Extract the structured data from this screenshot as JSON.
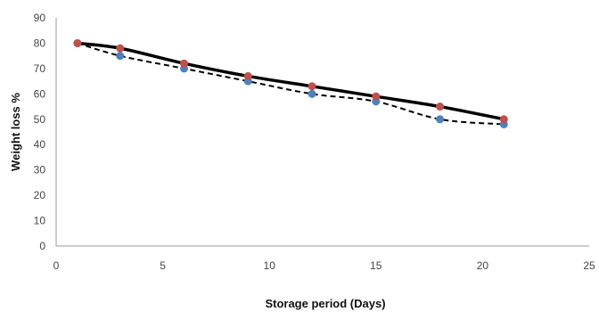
{
  "chart_data": {
    "type": "line",
    "title": "",
    "xlabel": "Storage period (Days)",
    "ylabel": "Weight loss %",
    "xlim": [
      0,
      25
    ],
    "ylim": [
      0,
      90
    ],
    "x_ticks": [
      "0",
      "5",
      "10",
      "15",
      "20",
      "25"
    ],
    "y_ticks": [
      "0",
      "10",
      "20",
      "30",
      "40",
      "50",
      "60",
      "70",
      "80",
      "90"
    ],
    "grid": false,
    "legend": "none",
    "series": [
      {
        "style": "solid",
        "line_color": "#000000",
        "marker_color": "#c0504d",
        "x": [
          1,
          3,
          6,
          9,
          12,
          15,
          18,
          21
        ],
        "values": [
          80,
          78,
          72,
          67,
          63,
          59,
          55,
          50
        ]
      },
      {
        "style": "dashed",
        "line_color": "#000000",
        "marker_color": "#4f81bd",
        "x": [
          1,
          3,
          6,
          9,
          12,
          15,
          18,
          21
        ],
        "values": [
          80,
          75,
          70,
          65,
          60,
          57,
          50,
          48
        ]
      }
    ]
  }
}
